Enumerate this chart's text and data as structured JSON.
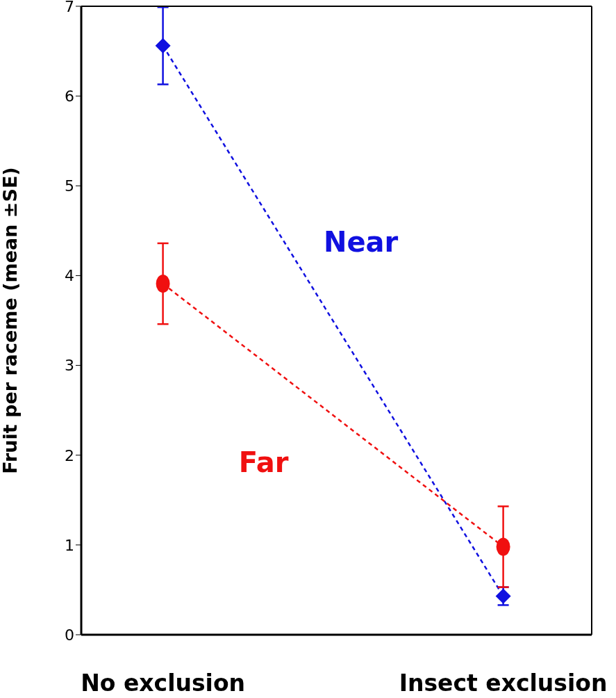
{
  "chart_data": {
    "type": "line",
    "ylabel": "Fruit per raceme (mean ±SE)",
    "categories": [
      "No exclusion",
      "Insect exclusion"
    ],
    "ylim": [
      0,
      7
    ],
    "yticks": [
      0,
      1,
      2,
      3,
      4,
      5,
      6,
      7
    ],
    "line_style": "dashed",
    "series": [
      {
        "name": "Near",
        "color": "#1010e0",
        "marker": "diamond",
        "values": [
          6.56,
          0.43
        ],
        "errors": [
          0.43,
          0.1
        ]
      },
      {
        "name": "Far",
        "color": "#f01010",
        "marker": "circle",
        "values": [
          3.91,
          0.98
        ],
        "errors": [
          0.45,
          0.45
        ]
      }
    ]
  }
}
